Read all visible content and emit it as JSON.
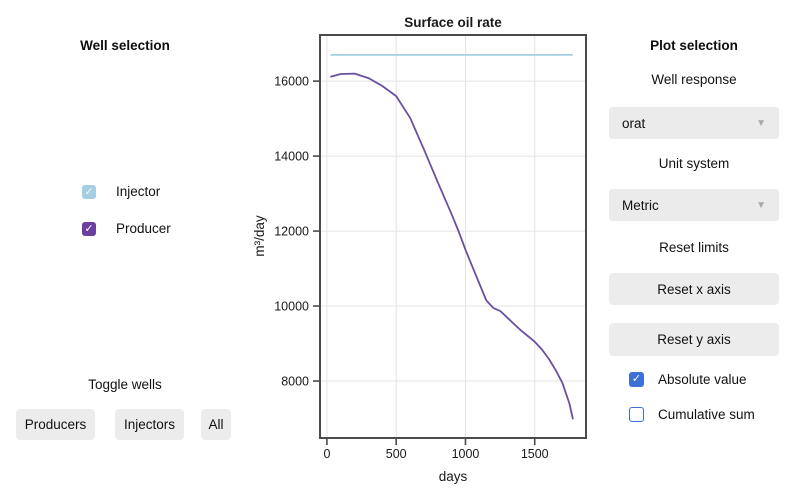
{
  "left_panel": {
    "title": "Well selection",
    "wells": [
      {
        "label": "Injector",
        "checked": true,
        "color": "#a6cee3"
      },
      {
        "label": "Producer",
        "checked": true,
        "color": "#6b3fa0"
      }
    ],
    "toggle_label": "Toggle wells",
    "buttons": [
      {
        "label": "Producers"
      },
      {
        "label": "Injectors"
      },
      {
        "label": "All"
      }
    ]
  },
  "right_panel": {
    "title": "Plot selection",
    "well_response_label": "Well response",
    "well_response_value": "orat",
    "unit_system_label": "Unit system",
    "unit_system_value": "Metric",
    "reset_limits_label": "Reset limits",
    "reset_x_label": "Reset x axis",
    "reset_y_label": "Reset y axis",
    "checkboxes": [
      {
        "label": "Absolute value",
        "checked": true
      },
      {
        "label": "Cumulative sum",
        "checked": false
      }
    ],
    "accent_color": "#3b71d9"
  },
  "icons": {
    "check": "✓",
    "dropdown_arrow": "▼"
  },
  "chart_data": {
    "type": "line",
    "title": "Surface oil rate",
    "xlabel": "days",
    "ylabel": "m³/day",
    "xlim": [
      -50,
      1870
    ],
    "ylim": [
      6480,
      17230
    ],
    "xticks": [
      0,
      500,
      1000,
      1500
    ],
    "yticks": [
      8000,
      10000,
      12000,
      14000,
      16000
    ],
    "grid": true,
    "legend_position": "none",
    "frame_color": "#4b4b4b",
    "grid_color": "#e4e4e4",
    "series": [
      {
        "name": "Injector",
        "color": "#a6cee3",
        "x": [
          30,
          1770
        ],
        "y": [
          16700,
          16700
        ]
      },
      {
        "name": "Producer",
        "color": "#6a4fa3",
        "x": [
          30,
          100,
          200,
          300,
          400,
          500,
          600,
          700,
          800,
          900,
          950,
          1000,
          1050,
          1100,
          1150,
          1200,
          1250,
          1300,
          1350,
          1400,
          1450,
          1500,
          1550,
          1600,
          1650,
          1700,
          1750,
          1775
        ],
        "y": [
          16120,
          16190,
          16200,
          16080,
          15870,
          15600,
          15020,
          14180,
          13300,
          12450,
          12000,
          11500,
          11050,
          10600,
          10150,
          9950,
          9870,
          9700,
          9520,
          9350,
          9200,
          9050,
          8850,
          8600,
          8300,
          7950,
          7400,
          7000
        ]
      }
    ]
  }
}
